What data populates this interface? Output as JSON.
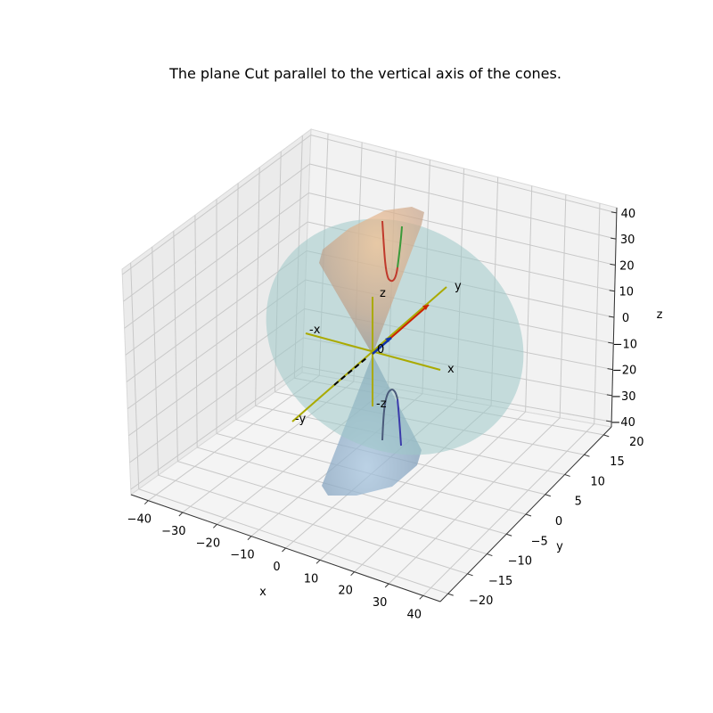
{
  "chart_data": {
    "type": "3d-surface",
    "title": "The plane Cut parallel to the vertical axis of the cones.",
    "xlabel": "x",
    "ylabel": "y",
    "zlabel": "z",
    "xlim": [
      -45,
      45
    ],
    "ylim": [
      -22,
      22
    ],
    "zlim": [
      -42,
      42
    ],
    "xticks": [
      -40,
      -30,
      -20,
      -10,
      0,
      10,
      20,
      30,
      40
    ],
    "yticks": [
      -20,
      -15,
      -10,
      -5,
      0,
      5,
      10,
      15,
      20
    ],
    "zticks": [
      -40,
      -30,
      -20,
      -10,
      0,
      10,
      20,
      30,
      40
    ],
    "xtick_labels": [
      "−40",
      "−30",
      "−20",
      "−10",
      "0",
      "10",
      "20",
      "30",
      "40"
    ],
    "ytick_labels": [
      "−20",
      "−15",
      "−10",
      "−5",
      "0",
      "5",
      "10",
      "15",
      "20"
    ],
    "ztick_labels": [
      "−40",
      "−30",
      "−20",
      "−10",
      "0",
      "10",
      "20",
      "30",
      "40"
    ],
    "grid": true,
    "surfaces": [
      {
        "kind": "disk-plane",
        "color": "#9fc8c8",
        "opacity": 0.55
      },
      {
        "kind": "cone-upper",
        "color": "#f3a35a",
        "opacity": 0.5
      },
      {
        "kind": "cone-lower",
        "color": "#6f9fcf",
        "opacity": 0.45
      }
    ],
    "curves": [
      {
        "kind": "hyperbola-upper",
        "colors": [
          "#c0392b",
          "#3a9a3a"
        ]
      },
      {
        "kind": "hyperbola-lower",
        "colors": [
          "#4a5a7a",
          "#3a3aaa"
        ]
      }
    ],
    "reference_axes": [
      {
        "label": "x",
        "color": "#aaaa00"
      },
      {
        "label": "-x",
        "color": "#aaaa00"
      },
      {
        "label": "y",
        "color": "#aaaa00"
      },
      {
        "label": "-y",
        "color": "#aaaa00"
      },
      {
        "label": "z",
        "color": "#aaaa00"
      },
      {
        "label": "-z",
        "color": "#aaaa00"
      },
      {
        "label": "0",
        "color": "#000000"
      }
    ],
    "vectors": [
      {
        "color": "#cc2200"
      },
      {
        "color": "#1133aa"
      }
    ]
  }
}
